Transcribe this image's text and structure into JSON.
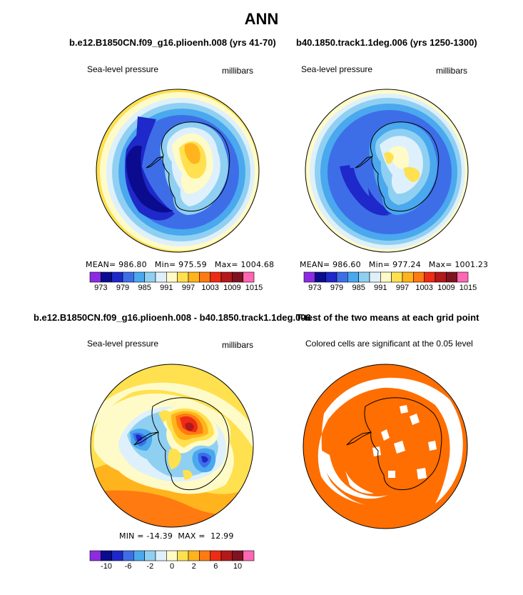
{
  "figure_title": "ANN",
  "colors": {
    "palette": [
      "#8d2be2",
      "#0b0b8f",
      "#1f28c8",
      "#3d6ee8",
      "#4aa8ee",
      "#8fd0f2",
      "#def0fb",
      "#fffbc8",
      "#ffe04f",
      "#ffb41e",
      "#ff7a10",
      "#ee2b14",
      "#b3181a",
      "#7f1320",
      "#ff66b3"
    ],
    "significant": "#ff6e00",
    "land_outline": "#000000"
  },
  "panels": [
    {
      "id": "top-left",
      "title": "b.e12.B1850CN.f09_g16.plioenh.008 (yrs 41-70)",
      "left_label": "Sea-level pressure",
      "right_label": "millibars",
      "stats": "MEAN= 986.80   Min= 975.59   Max= 1004.68",
      "ticks": [
        "973",
        "979",
        "985",
        "991",
        "997",
        "1003",
        "1009",
        "1015"
      ]
    },
    {
      "id": "top-right",
      "title": "b40.1850.track1.1deg.006 (yrs 1250-1300)",
      "left_label": "Sea-level pressure",
      "right_label": "millibars",
      "stats": "MEAN= 986.60   Min= 977.24   Max= 1001.23",
      "ticks": [
        "973",
        "979",
        "985",
        "991",
        "997",
        "1003",
        "1009",
        "1015"
      ]
    },
    {
      "id": "bottom-left",
      "title": "b.e12.B1850CN.f09_g16.plioenh.008 - b40.1850.track1.1deg.006",
      "left_label": "Sea-level pressure",
      "right_label": "millibars",
      "stats": "MIN = -14.39  MAX =  12.99",
      "ticks": [
        "-10",
        "-6",
        "-2",
        "0",
        "2",
        "6",
        "10"
      ]
    },
    {
      "id": "bottom-right",
      "title": "T-test of the two means at each grid point",
      "left_label": "Colored cells are significant at the 0.05 level"
    }
  ]
}
